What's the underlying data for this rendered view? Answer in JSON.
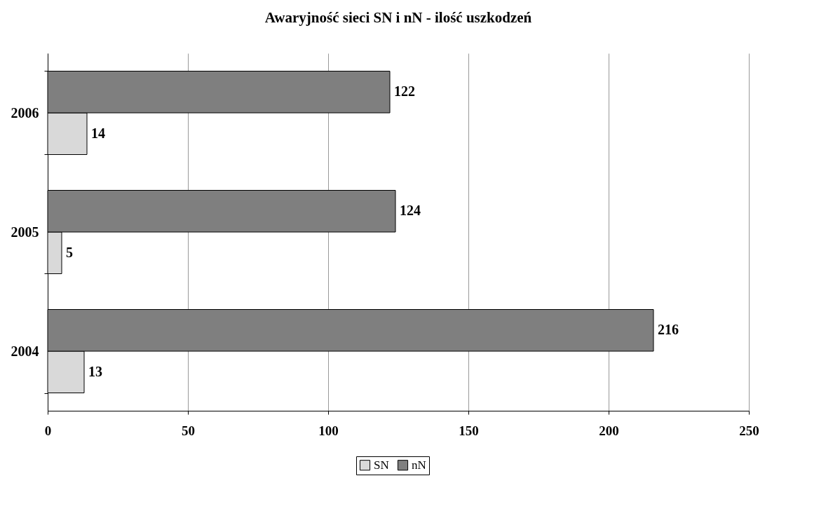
{
  "chart_data": {
    "type": "bar",
    "orientation": "horizontal",
    "title": "Awaryjność sieci SN i nN - ilość uszkodzeń",
    "categories": [
      "2006",
      "2005",
      "2004"
    ],
    "series": [
      {
        "name": "SN",
        "color": "#d9d9d9",
        "values": [
          14,
          5,
          13
        ]
      },
      {
        "name": "nN",
        "color": "#7f7f7f",
        "values": [
          122,
          124,
          216
        ]
      }
    ],
    "xlim": [
      0,
      250
    ],
    "xticks": [
      0,
      50,
      100,
      150,
      200,
      250
    ],
    "grid": "x",
    "legend": "bottom",
    "data_labels": true
  }
}
